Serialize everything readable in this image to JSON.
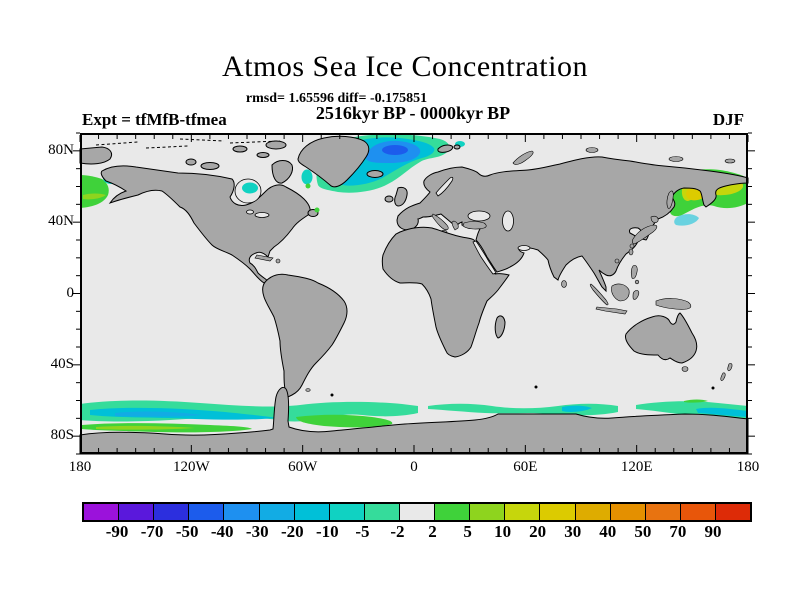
{
  "figure": {
    "title": "Atmos Sea Ice Concentration",
    "stats_line": "rmsd= 1.65596 diff= -0.175851",
    "period_line": "2516kyr BP - 0000kyr BP",
    "experiment_label": "Expt = tfMfB-tfmea",
    "season_label": "DJF"
  },
  "chart_data": {
    "type": "heatmap",
    "subtype": "filled-contour world map of sea ice concentration difference",
    "title": "Atmos Sea Ice Concentration",
    "subtitle": "2516kyr BP - 0000kyr BP",
    "stats": {
      "rmsd": 1.65596,
      "diff": -0.175851
    },
    "experiment": "tfMfB-tfmea",
    "season": "DJF",
    "projection": "equirectangular, 90N-90S / 180W-180E",
    "map_colors": {
      "land": "#A7A7A7",
      "ocean": "#E9E9E9",
      "coastline": "#000000"
    },
    "colorbar": {
      "boundary_labels": [
        "-90",
        "-70",
        "-50",
        "-40",
        "-30",
        "-20",
        "-10",
        "-5",
        "-2",
        "2",
        "5",
        "10",
        "20",
        "30",
        "40",
        "50",
        "70",
        "90"
      ],
      "colors": [
        "#9B12DB",
        "#5A18DC",
        "#2C2FDE",
        "#1C5CEC",
        "#1E90F0",
        "#12ACE4",
        "#00C0D8",
        "#10D2C2",
        "#35DC9B",
        "#E9E9E9",
        "#3FD23A",
        "#8ED41E",
        "#C6D60C",
        "#DCCB00",
        "#DEAC00",
        "#E49000",
        "#E87310",
        "#E8560A",
        "#DD2B07"
      ]
    },
    "axes": {
      "lat_ticks": [
        {
          "label": "80N",
          "lat": 80
        },
        {
          "label": "40N",
          "lat": 40
        },
        {
          "label": "0",
          "lat": 0
        },
        {
          "label": "40S",
          "lat": -40
        },
        {
          "label": "80S",
          "lat": -80
        }
      ],
      "lon_ticks": [
        {
          "label": "180",
          "lon": -180
        },
        {
          "label": "120W",
          "lon": -120
        },
        {
          "label": "60W",
          "lon": -60
        },
        {
          "label": "0",
          "lon": 0
        },
        {
          "label": "60E",
          "lon": 60
        },
        {
          "label": "120E",
          "lon": 120
        },
        {
          "label": "180",
          "lon": 180
        }
      ],
      "minor_tick_deg": 10,
      "major_lon_deg": 60,
      "major_lat_deg": 40
    },
    "regions": [
      {
        "name": "Greenland / Norwegian Sea (North Atlantic)",
        "sign": "negative",
        "approx_range": "-5 to -40",
        "appearance": "blue core with cyan-turquoise fringe"
      },
      {
        "name": "Bering Sea west of Alaska",
        "sign": "positive",
        "approx_range": "+2 to +10",
        "appearance": "green with yellow-green sliver"
      },
      {
        "name": "Gulf of Alaska coast",
        "sign": "negative",
        "approx_range": "-5 to -10",
        "appearance": "small turquoise patch"
      },
      {
        "name": "Hudson Bay",
        "sign": "negative",
        "approx_range": "-5 to -10",
        "appearance": "turquoise patch"
      },
      {
        "name": "Davis Strait",
        "sign": "negative",
        "approx_range": "-5 to -10",
        "appearance": "small turquoise patch with green dots"
      },
      {
        "name": "Sea of Okhotsk / NW Pacific",
        "sign": "positive",
        "approx_range": "+2 to +30",
        "appearance": "green rim, yellow-green and yellow core"
      },
      {
        "name": "South of Kamchatka",
        "sign": "negative",
        "approx_range": "-5 to -10",
        "appearance": "pale cyan patch"
      },
      {
        "name": "Southern Ocean circumpolar band ~60S",
        "sign": "mixed",
        "approx_range": "-20 to +10",
        "appearance": "turquoise band with cyan-blue core, green strips near Antarctic coast"
      }
    ]
  }
}
